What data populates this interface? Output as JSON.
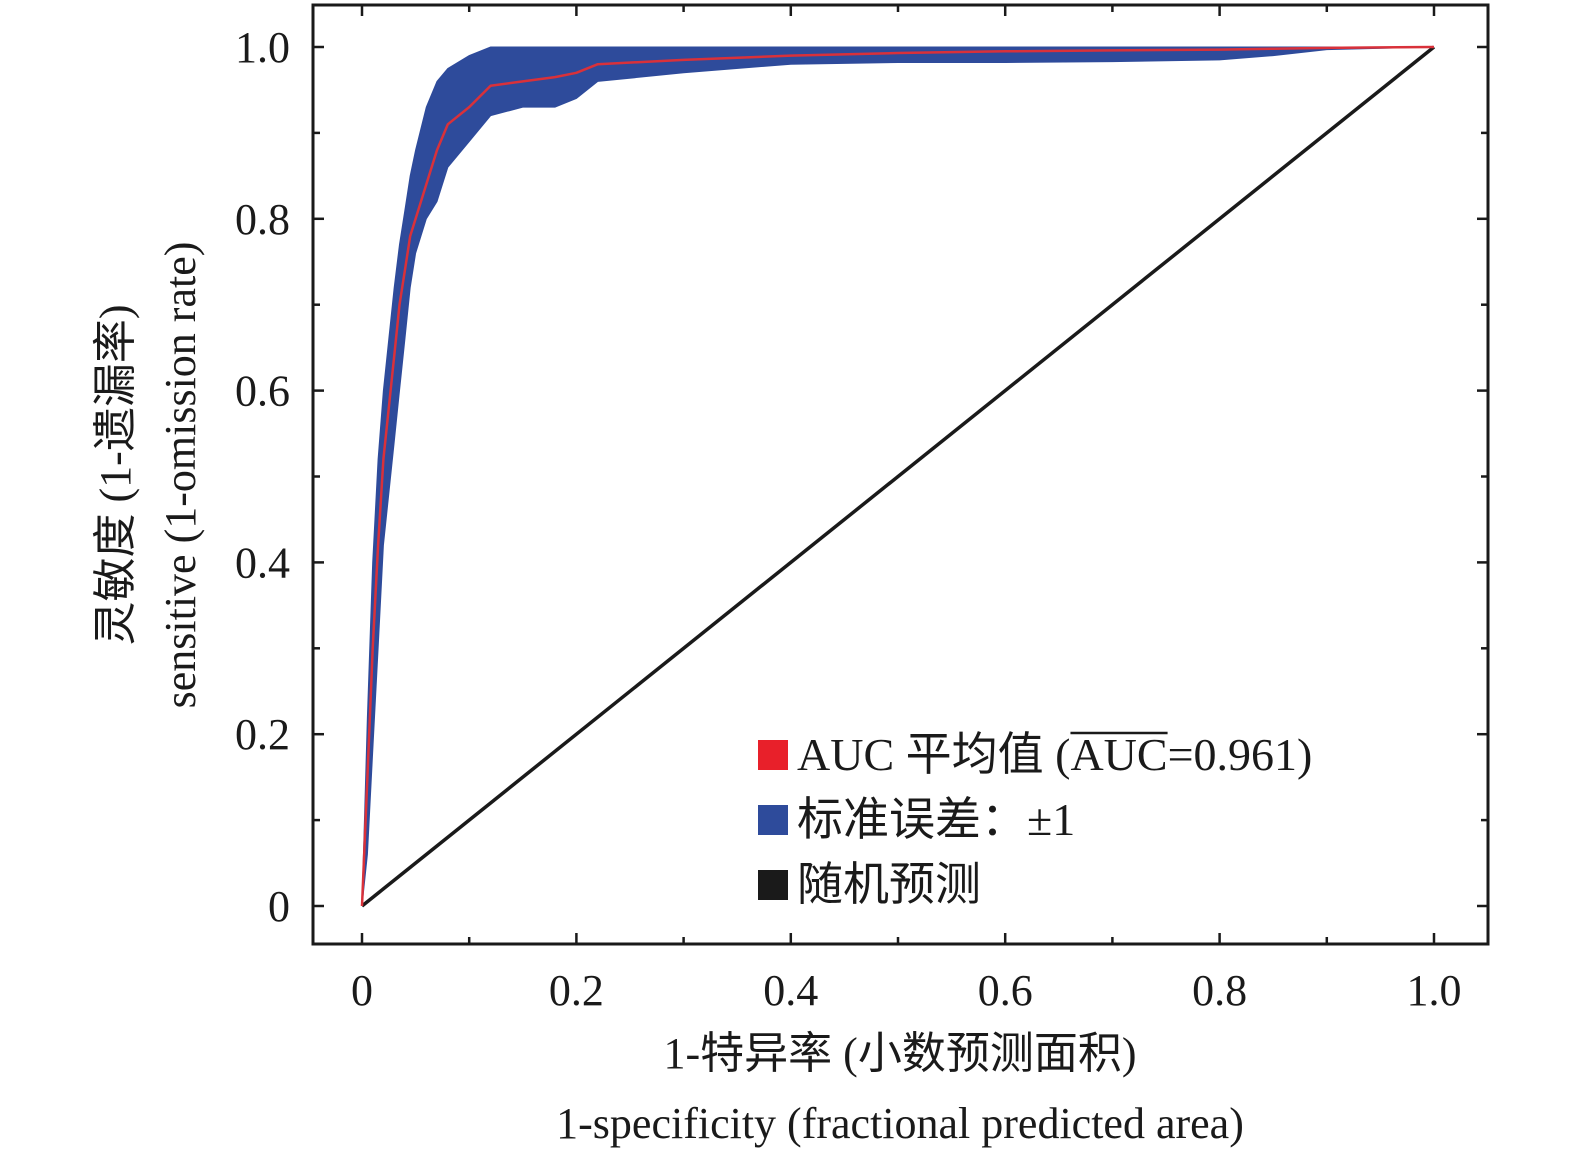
{
  "chart_data": {
    "type": "line",
    "xlabel_cn": "1-特异率 (小数预测面积)",
    "xlabel_en": "1-specificity (fractional predicted area)",
    "ylabel_cn": "灵敏度 (1-遗漏率)",
    "ylabel_en": "sensitive (1-omission rate)",
    "xlim": [
      0,
      1
    ],
    "ylim": [
      0,
      1
    ],
    "x_ticks": [
      "0",
      "0.2",
      "0.4",
      "0.6",
      "0.8",
      "1.0"
    ],
    "y_ticks": [
      "0",
      "0.2",
      "0.4",
      "0.6",
      "0.8",
      "1.0"
    ],
    "grid": false,
    "legend_position": "bottom-right",
    "legend": [
      {
        "key": "mean",
        "label": "AUC 平均值 (",
        "overline": "AUC",
        "suffix": "=0.961)",
        "color": "#e8202a"
      },
      {
        "key": "stderr",
        "label": "标准误差：±1",
        "color": "#2e4b9b"
      },
      {
        "key": "random",
        "label": "随机预测",
        "color": "#1a1a1a"
      }
    ],
    "series": [
      {
        "key": "mean",
        "color": "#d9313a",
        "x": [
          0,
          0.005,
          0.01,
          0.015,
          0.02,
          0.025,
          0.03,
          0.035,
          0.04,
          0.045,
          0.05,
          0.06,
          0.07,
          0.08,
          0.1,
          0.12,
          0.15,
          0.18,
          0.2,
          0.22,
          0.3,
          0.4,
          0.5,
          0.6,
          0.7,
          0.8,
          0.85,
          0.9,
          1.0
        ],
        "y": [
          0,
          0.15,
          0.3,
          0.42,
          0.52,
          0.58,
          0.64,
          0.7,
          0.74,
          0.78,
          0.8,
          0.84,
          0.88,
          0.91,
          0.93,
          0.955,
          0.96,
          0.965,
          0.97,
          0.98,
          0.985,
          0.99,
          0.993,
          0.995,
          0.996,
          0.997,
          0.998,
          0.999,
          1.0
        ]
      },
      {
        "key": "stderr",
        "color": "#2e4b9b",
        "x": [
          0,
          0.005,
          0.01,
          0.015,
          0.02,
          0.025,
          0.03,
          0.035,
          0.04,
          0.045,
          0.05,
          0.06,
          0.07,
          0.08,
          0.1,
          0.12,
          0.15,
          0.18,
          0.2,
          0.22,
          0.3,
          0.4,
          0.5,
          0.6,
          0.7,
          0.8,
          0.85,
          0.9,
          1.0
        ],
        "upper": [
          0,
          0.22,
          0.4,
          0.52,
          0.6,
          0.66,
          0.72,
          0.77,
          0.81,
          0.85,
          0.88,
          0.93,
          0.96,
          0.975,
          0.99,
          1.0,
          1.0,
          1.0,
          1.0,
          1.0,
          1.0,
          1.0,
          1.0,
          1.0,
          1.0,
          1.0,
          1.0,
          1.0,
          1.0
        ],
        "lower": [
          0,
          0.06,
          0.18,
          0.3,
          0.42,
          0.48,
          0.54,
          0.6,
          0.66,
          0.72,
          0.76,
          0.8,
          0.82,
          0.86,
          0.89,
          0.92,
          0.93,
          0.93,
          0.94,
          0.96,
          0.97,
          0.98,
          0.982,
          0.982,
          0.983,
          0.985,
          0.99,
          0.997,
          1.0
        ]
      },
      {
        "key": "random",
        "color": "#1a1a1a",
        "x": [
          0,
          1
        ],
        "y": [
          0,
          1
        ]
      }
    ]
  }
}
